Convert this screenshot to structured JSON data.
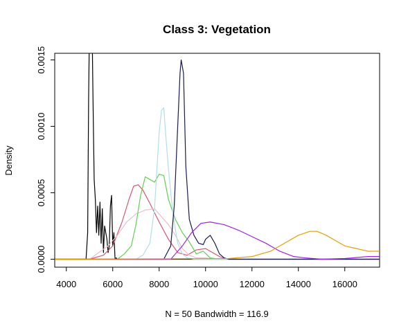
{
  "chart_data": {
    "type": "line",
    "title": "Class 3: Vegetation",
    "xlabel": "N = 50   Bandwidth = 116.9",
    "ylabel": "Density",
    "xlim": [
      3500,
      17500
    ],
    "ylim": [
      -6e-05,
      0.00155
    ],
    "x_ticks": [
      4000,
      6000,
      8000,
      10000,
      12000,
      14000,
      16000
    ],
    "y_ticks": [
      0.0,
      0.0005,
      0.001,
      0.0015
    ],
    "x_tick_labels": [
      "4000",
      "6000",
      "8000",
      "10000",
      "12000",
      "14000",
      "16000"
    ],
    "y_tick_labels": [
      "0.0000",
      "0.0005",
      "0.0010",
      "0.0015"
    ],
    "grid": false,
    "legend": "none",
    "series": [
      {
        "color": "#000000",
        "x": [
          3500,
          4850,
          4920,
          4960,
          5000,
          5050,
          5100,
          5150,
          5200,
          5250,
          5300,
          5350,
          5400,
          5450,
          5500,
          5550,
          5600,
          5650,
          5700,
          5750,
          5800,
          5850,
          5900,
          5950,
          6000,
          6050,
          6100,
          6150,
          6200,
          17500
        ],
        "y": [
          0,
          0,
          0.0002,
          0.0012,
          0.0018,
          0.0017,
          0.0019,
          0.0012,
          0.0006,
          0.00045,
          0.0002,
          0.0004,
          0.00018,
          0.00043,
          0.00012,
          0.00038,
          5e-05,
          0.00025,
          0.0002,
          0.00015,
          5e-05,
          0.0001,
          0.0004,
          0.00048,
          0.0001,
          0.0002,
          0,
          1e-05,
          0,
          0
        ]
      },
      {
        "color": "#DF536B",
        "x": [
          3500,
          5000,
          5600,
          6000,
          6400,
          6700,
          6900,
          7100,
          7300,
          7600,
          8000,
          8400,
          8800,
          9200,
          9600,
          10000,
          10300,
          10600,
          10900,
          17500
        ],
        "y": [
          0,
          0,
          3e-05,
          0.0001,
          0.00028,
          0.00045,
          0.00055,
          0.00056,
          0.00052,
          0.00042,
          0.00028,
          0.00015,
          5e-05,
          3e-05,
          7e-05,
          8e-05,
          5e-05,
          2e-05,
          0,
          0
        ]
      },
      {
        "color": "#E8C0CB",
        "x": [
          3500,
          5000,
          5800,
          6200,
          6600,
          7000,
          7400,
          7800,
          8100,
          8400,
          8700,
          9000,
          9300,
          9600,
          10000,
          10500,
          11000,
          17500
        ],
        "y": [
          0,
          0,
          0.0001,
          0.00018,
          0.00028,
          0.00034,
          0.00037,
          0.00038,
          0.00032,
          0.00026,
          0.00018,
          8e-05,
          3e-05,
          1e-05,
          1e-05,
          0,
          0,
          0
        ]
      },
      {
        "color": "#61D04F",
        "x": [
          3500,
          6200,
          6500,
          6800,
          7000,
          7200,
          7400,
          7600,
          7800,
          8000,
          8200,
          8400,
          8700,
          9000,
          9300,
          9600,
          9900,
          10200,
          10600,
          17500
        ],
        "y": [
          0,
          0,
          4e-05,
          0.0001,
          0.00026,
          0.00048,
          0.00062,
          0.0006,
          0.00058,
          0.00064,
          0.00063,
          0.00045,
          0.0003,
          0.0002,
          0.00013,
          4e-05,
          6e-05,
          1e-05,
          0,
          0
        ]
      },
      {
        "color": "#B0E0E6",
        "x": [
          3500,
          7000,
          7300,
          7600,
          7800,
          8000,
          8100,
          8200,
          8300,
          8400,
          8600,
          8800,
          9000,
          9200,
          9500,
          9800,
          17500
        ],
        "y": [
          0,
          0,
          3e-05,
          0.00012,
          0.00038,
          0.00095,
          0.00112,
          0.00114,
          0.0009,
          0.00068,
          0.00033,
          0.00012,
          4e-05,
          1e-05,
          0,
          0,
          0
        ]
      },
      {
        "color": "#1A1A4E",
        "x": [
          3500,
          8200,
          8500,
          8650,
          8800,
          8900,
          8950,
          9050,
          9150,
          9300,
          9500,
          9700,
          9900,
          10000,
          10200,
          10400,
          10600,
          10800,
          11000,
          17500
        ],
        "y": [
          0,
          0,
          0.0001,
          0.0004,
          0.001,
          0.0014,
          0.0015,
          0.0014,
          0.0007,
          0.0003,
          0.00018,
          0.00012,
          0.00011,
          0.00015,
          0.00018,
          0.00012,
          4e-05,
          1e-05,
          0,
          0
        ]
      },
      {
        "color": "#A020F0",
        "x": [
          3500,
          8500,
          9000,
          9400,
          9800,
          10200,
          10800,
          11400,
          12000,
          12600,
          13200,
          13800,
          14300,
          15000,
          16000,
          17000,
          17500
        ],
        "y": [
          0,
          0,
          0.0001,
          0.0002,
          0.00027,
          0.00028,
          0.00026,
          0.00022,
          0.00017,
          0.00012,
          6e-05,
          2e-05,
          1e-05,
          0,
          5e-06,
          2e-05,
          2e-05
        ]
      },
      {
        "color": "#E69F00",
        "x": [
          3500,
          11000,
          12000,
          12800,
          13500,
          14000,
          14500,
          14800,
          15200,
          15600,
          16000,
          16500,
          17000,
          17500
        ],
        "y": [
          0,
          5e-06,
          2e-05,
          6e-05,
          0.00013,
          0.00018,
          0.00021,
          0.00021,
          0.00018,
          0.00014,
          0.0001,
          8e-05,
          6e-05,
          6e-05
        ]
      }
    ]
  }
}
